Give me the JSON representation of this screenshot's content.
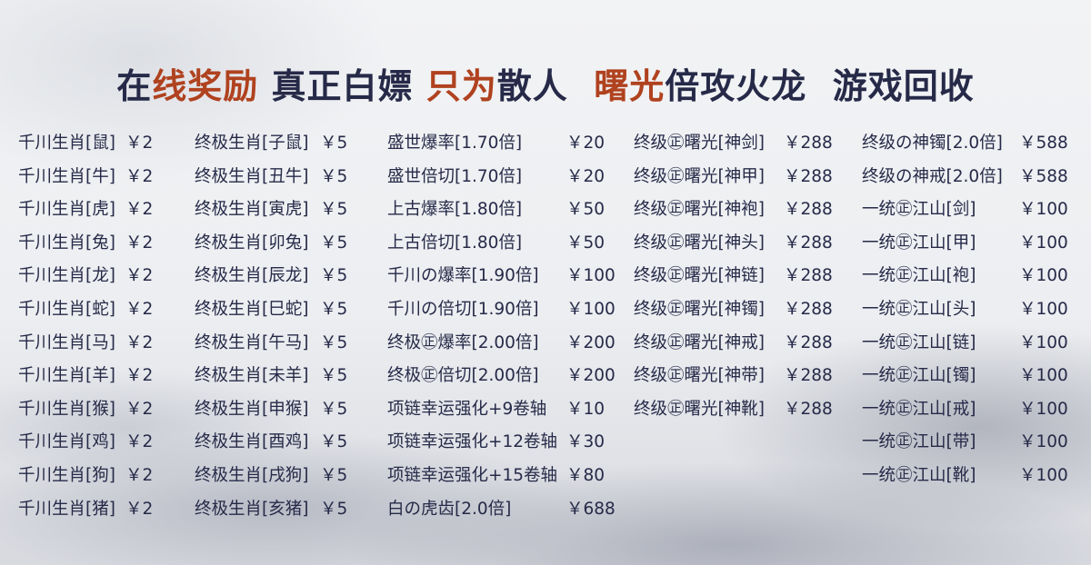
{
  "title": {
    "segments": [
      {
        "text": "在",
        "hl": false
      },
      {
        "text": "线奖励",
        "hl": true
      },
      {
        "text": " 真正白嫖 ",
        "hl": false
      },
      {
        "text": "只为",
        "hl": true
      },
      {
        "text": "散人  ",
        "hl": false
      },
      {
        "text": "曙光",
        "hl": true
      },
      {
        "text": "倍攻火龙  游戏回收",
        "hl": false
      }
    ]
  },
  "colors": {
    "text": "#262a48",
    "accent": "#b0421f"
  },
  "columns": [
    [
      {
        "name": "千川生肖[鼠]",
        "price": "￥2"
      },
      {
        "name": "千川生肖[牛]",
        "price": "￥2"
      },
      {
        "name": "千川生肖[虎]",
        "price": "￥2"
      },
      {
        "name": "千川生肖[兔]",
        "price": "￥2"
      },
      {
        "name": "千川生肖[龙]",
        "price": "￥2"
      },
      {
        "name": "千川生肖[蛇]",
        "price": "￥2"
      },
      {
        "name": "千川生肖[马]",
        "price": "￥2"
      },
      {
        "name": "千川生肖[羊]",
        "price": "￥2"
      },
      {
        "name": "千川生肖[猴]",
        "price": "￥2"
      },
      {
        "name": "千川生肖[鸡]",
        "price": "￥2"
      },
      {
        "name": "千川生肖[狗]",
        "price": "￥2"
      },
      {
        "name": "千川生肖[猪]",
        "price": "￥2"
      }
    ],
    [
      {
        "name": "终极生肖[子鼠]",
        "price": "￥5"
      },
      {
        "name": "终极生肖[丑牛]",
        "price": "￥5"
      },
      {
        "name": "终极生肖[寅虎]",
        "price": "￥5"
      },
      {
        "name": "终极生肖[卯兔]",
        "price": "￥5"
      },
      {
        "name": "终极生肖[辰龙]",
        "price": "￥5"
      },
      {
        "name": "终极生肖[巳蛇]",
        "price": "￥5"
      },
      {
        "name": "终极生肖[午马]",
        "price": "￥5"
      },
      {
        "name": "终极生肖[未羊]",
        "price": "￥5"
      },
      {
        "name": "终极生肖[申猴]",
        "price": "￥5"
      },
      {
        "name": "终极生肖[酉鸡]",
        "price": "￥5"
      },
      {
        "name": "终极生肖[戌狗]",
        "price": "￥5"
      },
      {
        "name": "终极生肖[亥猪]",
        "price": "￥5"
      }
    ],
    [
      {
        "name": "盛世爆率[1.70倍]",
        "price": "￥20"
      },
      {
        "name": "盛世倍切[1.70倍]",
        "price": "￥20"
      },
      {
        "name": "上古爆率[1.80倍]",
        "price": "￥50"
      },
      {
        "name": "上古倍切[1.80倍]",
        "price": "￥50"
      },
      {
        "name": "千川の爆率[1.90倍]",
        "price": "￥100"
      },
      {
        "name": "千川の倍切[1.90倍]",
        "price": "￥100"
      },
      {
        "name": "终极㊣爆率[2.00倍]",
        "price": "￥200"
      },
      {
        "name": "终极㊣倍切[2.00倍]",
        "price": "￥200"
      },
      {
        "name": "项链幸运强化+9卷轴",
        "price": "￥10"
      },
      {
        "name": "项链幸运强化+12卷轴",
        "price": "￥30"
      },
      {
        "name": "项链幸运强化+15卷轴",
        "price": "￥80"
      },
      {
        "name": "白の虎齿[2.0倍]",
        "price": "￥688"
      }
    ],
    [
      {
        "name": "终级㊣曙光[神剑]",
        "price": "￥288"
      },
      {
        "name": "终级㊣曙光[神甲]",
        "price": "￥288"
      },
      {
        "name": "终级㊣曙光[神袍]",
        "price": "￥288"
      },
      {
        "name": "终级㊣曙光[神头]",
        "price": "￥288"
      },
      {
        "name": "终级㊣曙光[神链]",
        "price": "￥288"
      },
      {
        "name": "终级㊣曙光[神镯]",
        "price": "￥288"
      },
      {
        "name": "终级㊣曙光[神戒]",
        "price": "￥288"
      },
      {
        "name": "终级㊣曙光[神带]",
        "price": "￥288"
      },
      {
        "name": "终级㊣曙光[神靴]",
        "price": "￥288"
      }
    ],
    [
      {
        "name": "终级の神镯[2.0倍]",
        "price": "￥588"
      },
      {
        "name": "终级の神戒[2.0倍]",
        "price": "￥588"
      },
      {
        "name": "一统㊣江山[剑]",
        "price": "￥100"
      },
      {
        "name": "一统㊣江山[甲]",
        "price": "￥100"
      },
      {
        "name": "一统㊣江山[袍]",
        "price": "￥100"
      },
      {
        "name": "一统㊣江山[头]",
        "price": "￥100"
      },
      {
        "name": "一统㊣江山[链]",
        "price": "￥100"
      },
      {
        "name": "一统㊣江山[镯]",
        "price": "￥100"
      },
      {
        "name": "一统㊣江山[戒]",
        "price": "￥100"
      },
      {
        "name": "一统㊣江山[带]",
        "price": "￥100"
      },
      {
        "name": "一统㊣江山[靴]",
        "price": "￥100"
      }
    ]
  ]
}
